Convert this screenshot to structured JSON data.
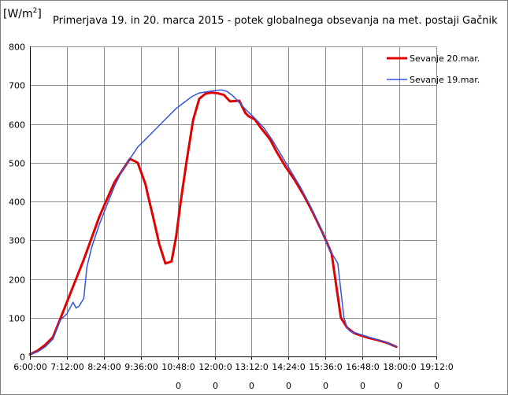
{
  "chart_data": {
    "type": "line",
    "title": "Primerjava 19. in 20. marca 2015 - potek globalnega obsevanja na met. postaji Gačnik",
    "ylabel_unit": "[W/m",
    "ylabel_sup": "2",
    "ylabel_close": "]",
    "ylim": [
      0,
      800
    ],
    "yticks": [
      0,
      100,
      200,
      300,
      400,
      500,
      600,
      700,
      800
    ],
    "xlim": [
      6.0,
      19.2
    ],
    "xticks": [
      {
        "x": 6.0,
        "line1": "6:00:00",
        "line2": ""
      },
      {
        "x": 7.2,
        "line1": "7:12:00",
        "line2": ""
      },
      {
        "x": 8.4,
        "line1": "8:24:00",
        "line2": ""
      },
      {
        "x": 9.6,
        "line1": "9:36:00",
        "line2": ""
      },
      {
        "x": 10.8,
        "line1": "10:48:0",
        "line2": "0"
      },
      {
        "x": 12.0,
        "line1": "12:00:0",
        "line2": "0"
      },
      {
        "x": 13.2,
        "line1": "13:12:0",
        "line2": "0"
      },
      {
        "x": 14.4,
        "line1": "14:24:0",
        "line2": "0"
      },
      {
        "x": 15.6,
        "line1": "15:36:0",
        "line2": "0"
      },
      {
        "x": 16.8,
        "line1": "16:48:0",
        "line2": "0"
      },
      {
        "x": 18.0,
        "line1": "18:00:0",
        "line2": "0"
      },
      {
        "x": 19.2,
        "line1": "19:12:0",
        "line2": "0"
      }
    ],
    "grid": true,
    "legend_position": "top-right",
    "series": [
      {
        "name": "Sevanje 20.mar.",
        "color": "#e00000",
        "x": [
          6.0,
          6.25,
          6.5,
          6.75,
          7.0,
          7.25,
          7.5,
          7.75,
          8.0,
          8.25,
          8.5,
          8.75,
          9.0,
          9.25,
          9.5,
          9.75,
          9.85,
          10.0,
          10.2,
          10.4,
          10.6,
          10.75,
          10.9,
          11.1,
          11.3,
          11.5,
          11.7,
          11.9,
          12.1,
          12.3,
          12.5,
          12.8,
          13.0,
          13.1,
          13.3,
          13.5,
          13.8,
          14.0,
          14.3,
          14.6,
          14.9,
          15.2,
          15.5,
          15.8,
          16.1,
          16.3,
          16.4,
          16.5,
          16.6,
          16.8,
          17.0,
          17.3,
          17.6,
          17.9
        ],
        "values": [
          5,
          15,
          30,
          50,
          100,
          150,
          200,
          250,
          305,
          360,
          405,
          450,
          480,
          510,
          500,
          445,
          410,
          360,
          290,
          240,
          245,
          310,
          400,
          510,
          610,
          665,
          678,
          681,
          679,
          675,
          658,
          660,
          628,
          620,
          612,
          590,
          560,
          530,
          490,
          455,
          415,
          370,
          320,
          265,
          100,
          75,
          68,
          62,
          58,
          53,
          48,
          42,
          35,
          25
        ]
      },
      {
        "name": "Sevanje 19.mar.",
        "color": "#3355dd",
        "x": [
          6.0,
          6.25,
          6.5,
          6.75,
          7.0,
          7.2,
          7.4,
          7.5,
          7.6,
          7.75,
          7.85,
          8.0,
          8.25,
          8.5,
          8.75,
          9.0,
          9.25,
          9.5,
          9.75,
          10.0,
          10.25,
          10.5,
          10.75,
          11.0,
          11.25,
          11.5,
          11.75,
          12.0,
          12.2,
          12.4,
          12.6,
          12.8,
          13.0,
          13.3,
          13.6,
          13.9,
          14.2,
          14.5,
          14.8,
          15.1,
          15.4,
          15.7,
          16.0,
          16.2,
          16.3,
          16.4,
          16.6,
          16.8,
          17.0,
          17.3,
          17.6,
          17.9
        ],
        "values": [
          5,
          12,
          25,
          45,
          95,
          110,
          140,
          125,
          130,
          150,
          230,
          280,
          340,
          390,
          440,
          480,
          510,
          540,
          560,
          580,
          600,
          620,
          640,
          655,
          670,
          680,
          683,
          686,
          688,
          684,
          672,
          655,
          638,
          615,
          590,
          555,
          515,
          475,
          435,
          390,
          340,
          280,
          240,
          100,
          75,
          65,
          60,
          55,
          50,
          43,
          35,
          25
        ]
      }
    ]
  }
}
